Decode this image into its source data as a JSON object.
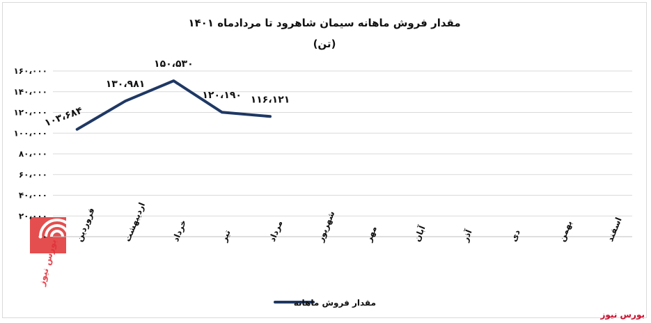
{
  "chart_data": {
    "type": "line",
    "title": "مقدار فروش ماهانه سیمان شاهرود تا مردادماه ۱۴۰۱",
    "subtitle": "(تن)",
    "categories": [
      "فروردین",
      "اردیبهشت",
      "خرداد",
      "تیر",
      "مرداد",
      "شهریور",
      "مهر",
      "آبان",
      "آذر",
      "دی",
      "بهمن",
      "اسفند"
    ],
    "series": [
      {
        "name": "مقدار فروش ماهانه",
        "color": "#1f3864",
        "values": [
          103684,
          130981,
          150530,
          120190,
          116121,
          null,
          null,
          null,
          null,
          null,
          null,
          null
        ],
        "labels": [
          "۱۰۳،۶۸۴",
          "۱۳۰،۹۸۱",
          "۱۵۰،۵۳۰",
          "۱۲۰،۱۹۰",
          "۱۱۶،۱۲۱",
          "",
          "",
          "",
          "",
          "",
          "",
          ""
        ]
      }
    ],
    "ylim": [
      0,
      160000
    ],
    "yticks": [
      0,
      20000,
      40000,
      60000,
      80000,
      100000,
      120000,
      140000,
      160000
    ],
    "ytick_labels": [
      "۰",
      "۲۰،۰۰۰",
      "۴۰،۰۰۰",
      "۶۰،۰۰۰",
      "۸۰،۰۰۰",
      "۱۰۰،۰۰۰",
      "۱۲۰،۰۰۰",
      "۱۴۰،۰۰۰",
      "۱۶۰،۰۰۰"
    ],
    "grid": true,
    "legend": "bottom"
  },
  "branding": {
    "text": "بورس نیوز",
    "color": "#c8102e",
    "logo_icon": "bourse-news-logo-icon",
    "logo_text": "بورس نیوز"
  }
}
